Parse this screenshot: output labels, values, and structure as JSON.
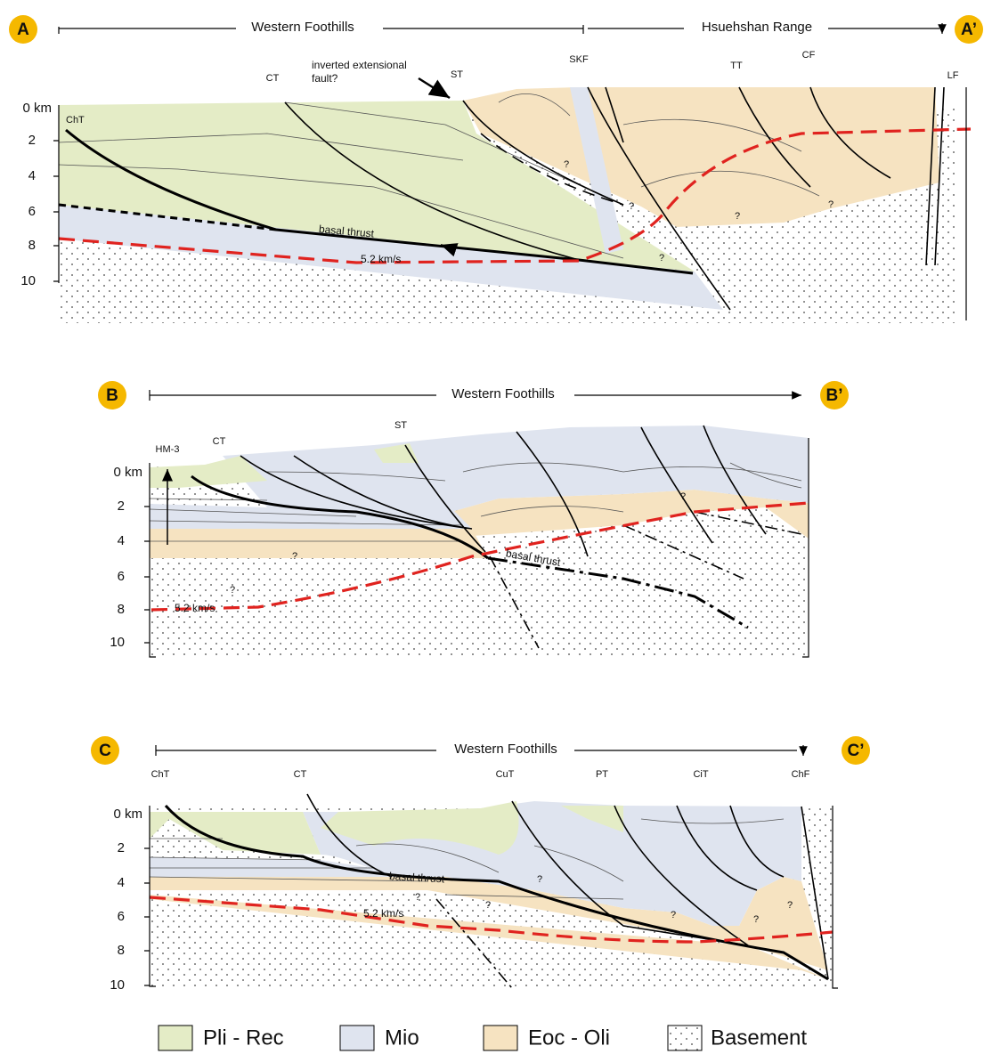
{
  "sections": [
    {
      "start_label": "A",
      "end_label": "A’",
      "regions": [
        "Western Foothills",
        "Hsuehshan Range"
      ],
      "depths": [
        "0 km",
        "2",
        "4",
        "6",
        "8",
        "10"
      ],
      "faults": [
        "ChT",
        "CT",
        "ST",
        "SKF",
        "TT",
        "CF",
        "LF"
      ],
      "annotations": [
        "inverted extensional",
        "fault?",
        "basal thrust",
        "5.2 km/s"
      ],
      "question_marks": [
        "?",
        "?",
        "?",
        "?",
        "?"
      ]
    },
    {
      "start_label": "B",
      "end_label": "B’",
      "regions": [
        "Western Foothills"
      ],
      "depths": [
        "0 km",
        "2",
        "4",
        "6",
        "8",
        "10"
      ],
      "faults": [
        "HM-3",
        "CT",
        "ST"
      ],
      "annotations": [
        "basal thrust",
        "5.2 km/s"
      ],
      "question_marks": [
        "?",
        "?",
        "?"
      ]
    },
    {
      "start_label": "C",
      "end_label": "C’",
      "regions": [
        "Western Foothills"
      ],
      "depths": [
        "0 km",
        "2",
        "4",
        "6",
        "8",
        "10"
      ],
      "faults": [
        "ChT",
        "CT",
        "CuT",
        "PT",
        "CiT",
        "ChF"
      ],
      "annotations": [
        "basal thrust",
        "5.2 km/s"
      ],
      "question_marks": [
        "?",
        "?",
        "?",
        "?",
        "?",
        "?"
      ]
    }
  ],
  "legend": [
    "Pli - Rec",
    "Mio",
    "Eoc - Oli",
    "Basement"
  ]
}
